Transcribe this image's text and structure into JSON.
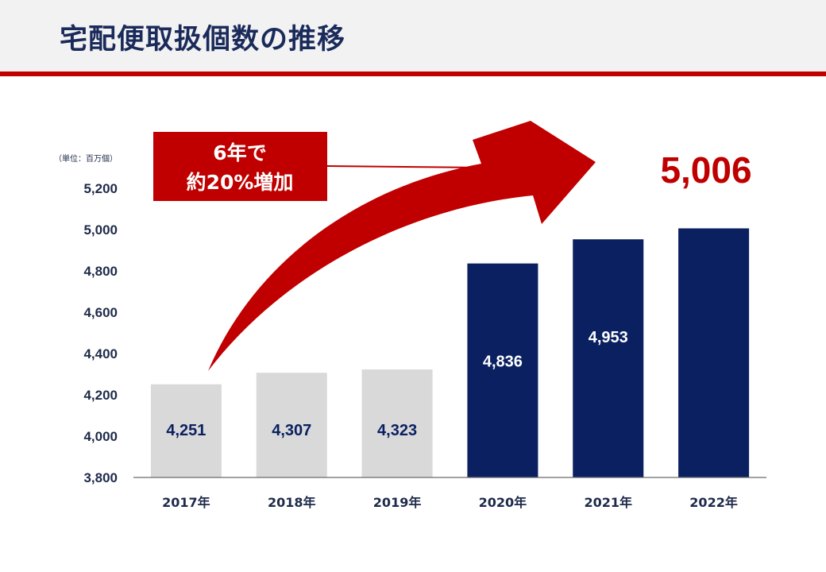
{
  "header": {
    "title": "宅配便取扱個数の推移"
  },
  "colors": {
    "header_bg": "#f2f2f2",
    "accent_red": "#c00000",
    "navy": "#0a2060",
    "gray_bar": "#d9d9d9",
    "text_dark": "#1e2a4a"
  },
  "callout": {
    "line1": "6年で",
    "line2": "約20%増加"
  },
  "highlight_value": "5,006",
  "chart_data": {
    "type": "bar",
    "unit_label": "（単位：百万個）",
    "categories": [
      "2017年",
      "2018年",
      "2019年",
      "2020年",
      "2021年",
      "2022年"
    ],
    "values": [
      4251,
      4307,
      4323,
      4836,
      4953,
      5006
    ],
    "value_labels": [
      "4,251",
      "4,307",
      "4,323",
      "4,836",
      "4,953",
      ""
    ],
    "bar_colors": [
      "#d9d9d9",
      "#d9d9d9",
      "#d9d9d9",
      "#0a2060",
      "#0a2060",
      "#0a2060"
    ],
    "label_colors": [
      "#0a2060",
      "#0a2060",
      "#0a2060",
      "#ffffff",
      "#ffffff",
      "#ffffff"
    ],
    "ylim": [
      3800,
      5200
    ],
    "yticks": [
      3800,
      4000,
      4200,
      4400,
      4600,
      4800,
      5000,
      5200
    ],
    "ytick_labels": [
      "3,800",
      "4,000",
      "4,200",
      "4,400",
      "4,600",
      "4,800",
      "5,000",
      "5,200"
    ],
    "grid": false,
    "legend": "none"
  }
}
